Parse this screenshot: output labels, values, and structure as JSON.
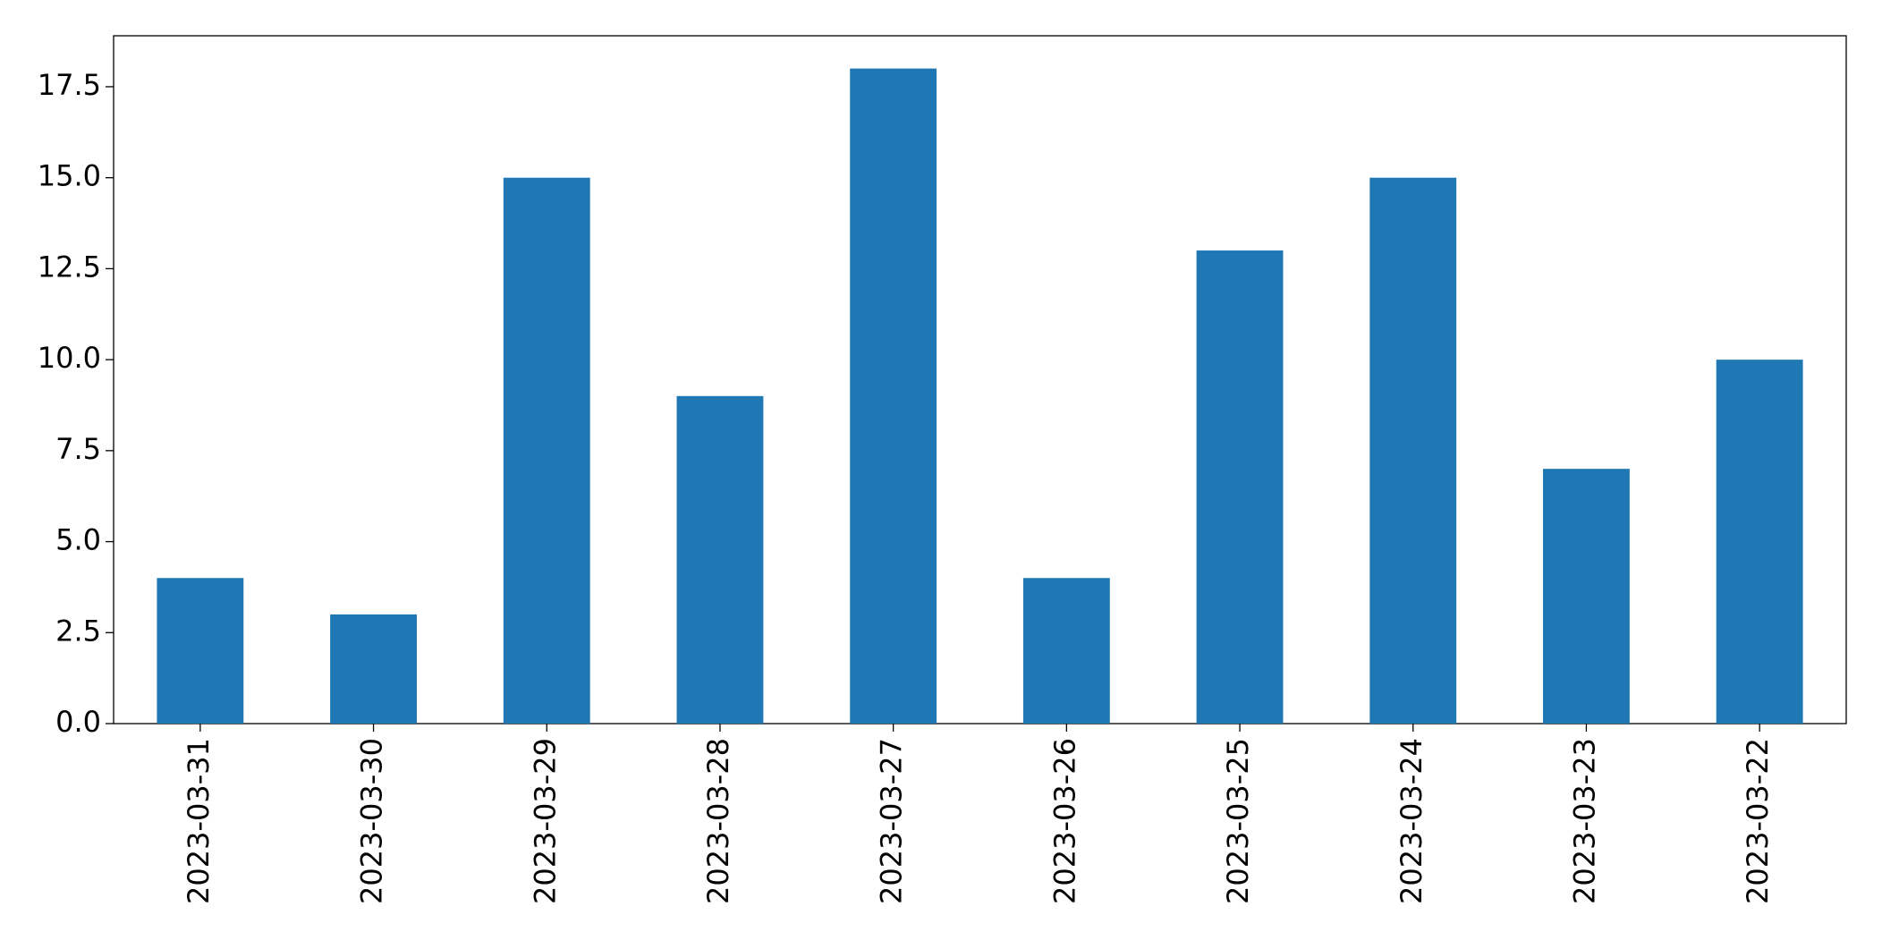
{
  "chart_data": {
    "type": "bar",
    "categories": [
      "2023-03-31",
      "2023-03-30",
      "2023-03-29",
      "2023-03-28",
      "2023-03-27",
      "2023-03-26",
      "2023-03-25",
      "2023-03-24",
      "2023-03-23",
      "2023-03-22"
    ],
    "values": [
      4,
      3,
      15,
      9,
      18,
      4,
      13,
      15,
      7,
      10
    ],
    "color": "#1f77b4",
    "ylim": [
      0,
      18.9
    ],
    "yticks": [
      {
        "value": 0,
        "label": "0.0"
      },
      2.5,
      {
        "value": 5,
        "label": "5.0"
      },
      7.5,
      {
        "value": 10,
        "label": "10.0"
      },
      12.5,
      {
        "value": 15,
        "label": "15.0"
      },
      17.5
    ],
    "grid": false
  }
}
